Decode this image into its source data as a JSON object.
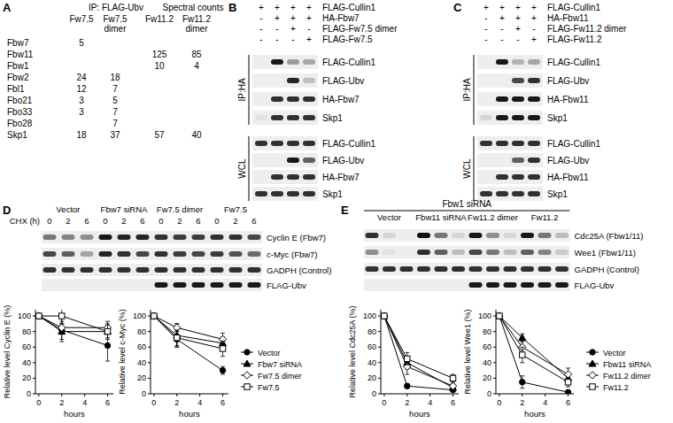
{
  "panel_labels": [
    "A",
    "B",
    "C",
    "D",
    "E"
  ],
  "table": {
    "header": [
      "IP: FLAG-Ubv",
      "Spectral counts"
    ],
    "columns": [
      "Fw7.5",
      "Fw7.5 dimer",
      "Fw11.2",
      "Fw11.2 dimer"
    ],
    "rows": [
      {
        "label": "Fbw7",
        "counts": [
          5,
          null,
          null,
          null
        ]
      },
      {
        "label": "Fbw11",
        "counts": [
          null,
          null,
          125,
          85
        ]
      },
      {
        "label": "Fbw1",
        "counts": [
          null,
          null,
          10,
          4
        ]
      },
      {
        "label": "Fbw2",
        "counts": [
          24,
          18,
          null,
          null
        ]
      },
      {
        "label": "Fbl1",
        "counts": [
          12,
          7,
          null,
          null
        ]
      },
      {
        "label": "Fbo21",
        "counts": [
          3,
          5,
          null,
          null
        ]
      },
      {
        "label": "Fbo33",
        "counts": [
          3,
          7,
          null,
          null
        ]
      },
      {
        "label": "Fbo28",
        "counts": [
          null,
          7,
          null,
          null
        ]
      },
      {
        "label": "Skp1",
        "counts": [
          18,
          37,
          57,
          40
        ]
      }
    ]
  },
  "blots": [
    {
      "conditions": [
        {
          "label": "FLAG-Cullin1",
          "signs": [
            "+",
            "+",
            "+",
            "+"
          ]
        },
        {
          "label": "HA-Fbw7",
          "signs": [
            "-",
            "+",
            "+",
            "+"
          ]
        },
        {
          "label": "FLAG-Fw7.5 dimer",
          "signs": [
            "-",
            "-",
            "+",
            "-"
          ]
        },
        {
          "label": "FLAG-Fw7.5",
          "signs": [
            "-",
            "-",
            "-",
            "+"
          ]
        }
      ],
      "sections": [
        {
          "label": "IP:HA",
          "rows": [
            {
              "label": "FLAG-Cullin1",
              "bands": [
                0,
                0.9,
                0.35,
                0.3
              ]
            },
            {
              "label": "FLAG-Ubv",
              "bands": [
                0,
                0,
                0.85,
                0.2
              ]
            },
            {
              "label": "HA-Fbw7",
              "bands": [
                0,
                0.8,
                0.8,
                0.8
              ]
            },
            {
              "label": "Skp1",
              "bands": [
                0.05,
                0.8,
                0.8,
                0.8
              ]
            }
          ]
        },
        {
          "label": "WCL",
          "rows": [
            {
              "label": "FLAG-Cullin1",
              "bands": [
                0.8,
                0.8,
                0.8,
                0.8
              ]
            },
            {
              "label": "FLAG-Ubv",
              "bands": [
                0,
                0,
                0.9,
                0.6
              ]
            },
            {
              "label": "HA-Fbw7",
              "bands": [
                0,
                0.8,
                0.8,
                0.8
              ]
            },
            {
              "label": "Skp1",
              "bands": [
                0.8,
                0.8,
                0.8,
                0.8
              ]
            }
          ]
        }
      ]
    },
    {
      "conditions": [
        {
          "label": "FLAG-Cullin1",
          "signs": [
            "+",
            "+",
            "+",
            "+"
          ]
        },
        {
          "label": "HA-Fbw11",
          "signs": [
            "-",
            "+",
            "+",
            "+"
          ]
        },
        {
          "label": "FLAG-Fw11.2 dimer",
          "signs": [
            "-",
            "-",
            "+",
            "-"
          ]
        },
        {
          "label": "FLAG-Fw11.2",
          "signs": [
            "-",
            "-",
            "-",
            "+"
          ]
        }
      ],
      "sections": [
        {
          "label": "IP:HA",
          "rows": [
            {
              "label": "FLAG-Cullin1",
              "bands": [
                0,
                0.9,
                0.25,
                0.3
              ]
            },
            {
              "label": "FLAG-Ubv",
              "bands": [
                0,
                0,
                0.7,
                0.8
              ]
            },
            {
              "label": "HA-Fbw11",
              "bands": [
                0,
                0.9,
                0.9,
                0.9
              ]
            },
            {
              "label": "Skp1",
              "bands": [
                0.1,
                0.9,
                0.9,
                0.9
              ]
            }
          ]
        },
        {
          "label": "WCL",
          "rows": [
            {
              "label": "FLAG-Cullin1",
              "bands": [
                0.8,
                0.8,
                0.8,
                0.8
              ]
            },
            {
              "label": "FLAG-Ubv",
              "bands": [
                0,
                0,
                0.6,
                0.8
              ]
            },
            {
              "label": "HA-Fbw11",
              "bands": [
                0,
                0.8,
                0.8,
                0.8
              ]
            },
            {
              "label": "Skp1",
              "bands": [
                0.8,
                0.8,
                0.8,
                0.8
              ]
            }
          ]
        }
      ]
    },
    {
      "groups": [
        "Vector",
        "Fbw7 siRNA",
        "Fw7.5 dimer",
        "Fw7.5"
      ],
      "time_label": "CHX (h)",
      "times": [
        0,
        2,
        6
      ],
      "rows": [
        {
          "label": "Cyclin E (Fbw7)",
          "bands": [
            0.5,
            0.45,
            0.4,
            0.9,
            0.85,
            0.85,
            0.8,
            0.75,
            0.75,
            0.8,
            0.8,
            0.7
          ]
        },
        {
          "label": "c-Myc (Fbw7)",
          "bands": [
            0.7,
            0.6,
            0.3,
            0.85,
            0.8,
            0.7,
            0.8,
            0.75,
            0.7,
            0.75,
            0.65,
            0.55
          ]
        },
        {
          "label": "GADPH (Control)",
          "bands": [
            0.8,
            0.8,
            0.8,
            0.8,
            0.8,
            0.8,
            0.8,
            0.8,
            0.8,
            0.8,
            0.8,
            0.8
          ]
        },
        {
          "label": "FLAG-Ubv",
          "bands": [
            0,
            0,
            0,
            0,
            0,
            0,
            0.9,
            0.9,
            0.9,
            0.9,
            0.9,
            0.9
          ]
        }
      ]
    },
    {
      "title": "Fbw1 siRNA",
      "groups": [
        "Vector",
        "Fbw11 siRNA",
        "Fw11.2 dimer",
        "Fw11.2"
      ],
      "rows": [
        {
          "label": "Cdc25A (Fbw1/11)",
          "bands": [
            0.8,
            0.1,
            0,
            0.95,
            0.5,
            0.1,
            0.9,
            0.4,
            0.1,
            0.9,
            0.5,
            0.2
          ]
        },
        {
          "label": "Wee1 (Fbw1/11)",
          "bands": [
            0.4,
            0.05,
            0,
            0.8,
            0.6,
            0.2,
            0.7,
            0.5,
            0.2,
            0.6,
            0.45,
            0.15
          ]
        },
        {
          "label": "GADPH (Control)",
          "bands": [
            0.8,
            0.8,
            0.8,
            0.8,
            0.8,
            0.8,
            0.8,
            0.8,
            0.8,
            0.8,
            0.8,
            0.8
          ]
        },
        {
          "label": "FLAG-Ubv",
          "bands": [
            0,
            0,
            0,
            0,
            0,
            0,
            0.9,
            0.9,
            0.9,
            0.9,
            0.9,
            0.9
          ]
        }
      ]
    }
  ],
  "chart_data": [
    {
      "type": "line",
      "y_label": "Relative level Cyclin E (%)",
      "x_label": "hours",
      "x": [
        0,
        2,
        6
      ],
      "xlim": [
        -0.3,
        6.5
      ],
      "xticks": [
        0,
        2,
        4,
        6
      ],
      "ylim": [
        0,
        108
      ],
      "yticks": [
        0,
        20,
        40,
        60,
        80,
        100
      ],
      "series": [
        {
          "name": "Vector",
          "color": "#000000",
          "marker": "circle",
          "values": [
            100,
            82,
            62
          ],
          "errors": [
            0,
            15,
            20
          ]
        },
        {
          "name": "Fbw7 siRNA",
          "color": "#000000",
          "marker": "triangle",
          "values": [
            100,
            80,
            80
          ],
          "errors": [
            0,
            10,
            8
          ]
        },
        {
          "name": "Fw7.5 dimer",
          "color": "#000000",
          "marker": "diamond-open",
          "values": [
            100,
            85,
            85
          ],
          "errors": [
            0,
            8,
            8
          ]
        },
        {
          "name": "Fw7.5",
          "color": "#000000",
          "marker": "square-open",
          "values": [
            100,
            100,
            80
          ],
          "errors": [
            0,
            10,
            10
          ]
        }
      ]
    },
    {
      "type": "line",
      "y_label": "Relative level c-Myc (%)",
      "x_label": "hours",
      "x": [
        0,
        2,
        6
      ],
      "xlim": [
        -0.3,
        6.5
      ],
      "xticks": [
        0,
        2,
        4,
        6
      ],
      "ylim": [
        0,
        108
      ],
      "yticks": [
        0,
        20,
        40,
        60,
        80,
        100
      ],
      "legend": "right",
      "series": [
        {
          "name": "Vector",
          "color": "#000000",
          "marker": "circle",
          "values": [
            100,
            70,
            30
          ],
          "errors": [
            0,
            10,
            5
          ]
        },
        {
          "name": "Fbw7 siRNA",
          "color": "#000000",
          "marker": "triangle",
          "values": [
            100,
            75,
            65
          ],
          "errors": [
            0,
            15,
            8
          ]
        },
        {
          "name": "Fw7.5 dimer",
          "color": "#000000",
          "marker": "diamond-open",
          "values": [
            100,
            85,
            70
          ],
          "errors": [
            0,
            5,
            8
          ]
        },
        {
          "name": "Fw7.5",
          "color": "#000000",
          "marker": "square-open",
          "values": [
            100,
            72,
            58
          ],
          "errors": [
            0,
            10,
            10
          ]
        }
      ]
    },
    {
      "type": "line",
      "y_label": "Relative level Cdc25A (%)",
      "x_label": "hours",
      "x": [
        0,
        2,
        6
      ],
      "xlim": [
        -0.3,
        6.5
      ],
      "xticks": [
        0,
        2,
        4,
        6
      ],
      "ylim": [
        0,
        108
      ],
      "yticks": [
        0,
        20,
        40,
        60,
        80,
        100
      ],
      "series": [
        {
          "name": "Vector",
          "color": "#000000",
          "marker": "circle",
          "values": [
            100,
            10,
            5
          ],
          "errors": [
            0,
            3,
            2
          ]
        },
        {
          "name": "Fbw11 siRNA",
          "color": "#000000",
          "marker": "triangle",
          "values": [
            100,
            40,
            8
          ],
          "errors": [
            0,
            8,
            3
          ]
        },
        {
          "name": "Fw11.2 dimer",
          "color": "#000000",
          "marker": "diamond-open",
          "values": [
            100,
            35,
            10
          ],
          "errors": [
            0,
            10,
            3
          ]
        },
        {
          "name": "Fw11.2",
          "color": "#000000",
          "marker": "square-open",
          "values": [
            100,
            45,
            20
          ],
          "errors": [
            0,
            8,
            5
          ]
        }
      ]
    },
    {
      "type": "line",
      "y_label": "Relative level Wee1 (%)",
      "x_label": "hours",
      "x": [
        0,
        2,
        6
      ],
      "xlim": [
        -0.3,
        6.5
      ],
      "xticks": [
        0,
        2,
        4,
        6
      ],
      "ylim": [
        0,
        108
      ],
      "yticks": [
        0,
        20,
        40,
        60,
        80,
        100
      ],
      "legend": "right",
      "series": [
        {
          "name": "Vector",
          "color": "#000000",
          "marker": "circle",
          "values": [
            100,
            15,
            2
          ],
          "errors": [
            0,
            8,
            2
          ]
        },
        {
          "name": "Fbw11 siRNA",
          "color": "#000000",
          "marker": "triangle",
          "values": [
            100,
            72,
            20
          ],
          "errors": [
            0,
            5,
            5
          ]
        },
        {
          "name": "Fw11.2 dimer",
          "color": "#000000",
          "marker": "diamond-open",
          "values": [
            100,
            60,
            25
          ],
          "errors": [
            0,
            8,
            8
          ]
        },
        {
          "name": "Fw11.2",
          "color": "#000000",
          "marker": "square-open",
          "values": [
            100,
            50,
            15
          ],
          "errors": [
            0,
            10,
            6
          ]
        }
      ]
    }
  ]
}
